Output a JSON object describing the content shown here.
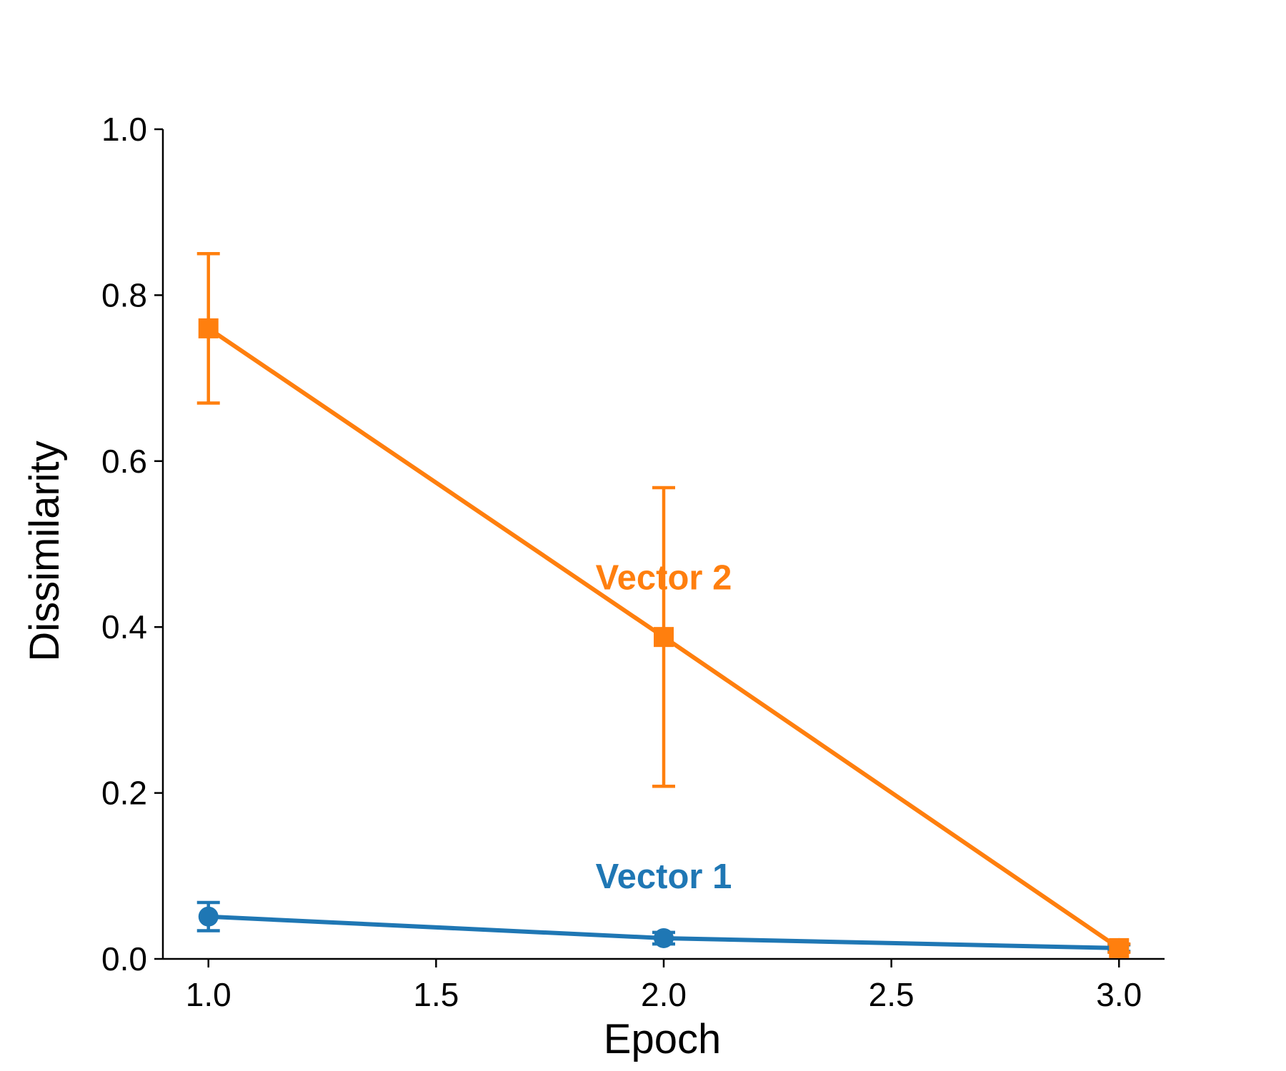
{
  "chart_data": {
    "type": "line",
    "title": "",
    "xlabel": "Epoch",
    "ylabel": "Dissimilarity",
    "xlim": [
      0.9,
      3.1
    ],
    "ylim": [
      0.0,
      1.0
    ],
    "x_ticks": [
      1.0,
      1.5,
      2.0,
      2.5,
      3.0
    ],
    "x_tick_labels": [
      "1.0",
      "1.5",
      "2.0",
      "2.5",
      "3.0"
    ],
    "y_ticks": [
      0.0,
      0.2,
      0.4,
      0.6,
      0.8,
      1.0
    ],
    "y_tick_labels": [
      "0.0",
      "0.2",
      "0.4",
      "0.6",
      "0.8",
      "1.0"
    ],
    "grid": false,
    "legend": "inline series labels",
    "series": [
      {
        "name": "Vector 1",
        "color": "#1f77b4",
        "marker": "circle",
        "x": [
          1.0,
          2.0,
          3.0
        ],
        "y": [
          0.051,
          0.025,
          0.013
        ],
        "error": [
          0.017,
          0.007,
          0.004
        ],
        "label_at": {
          "x": 2.0,
          "y": 0.1
        }
      },
      {
        "name": "Vector 2",
        "color": "#ff7f0e",
        "marker": "square",
        "x": [
          1.0,
          2.0,
          3.0
        ],
        "y": [
          0.76,
          0.388,
          0.013
        ],
        "error": [
          0.09,
          0.18,
          0.005
        ],
        "label_at": {
          "x": 2.0,
          "y": 0.46
        }
      }
    ]
  }
}
